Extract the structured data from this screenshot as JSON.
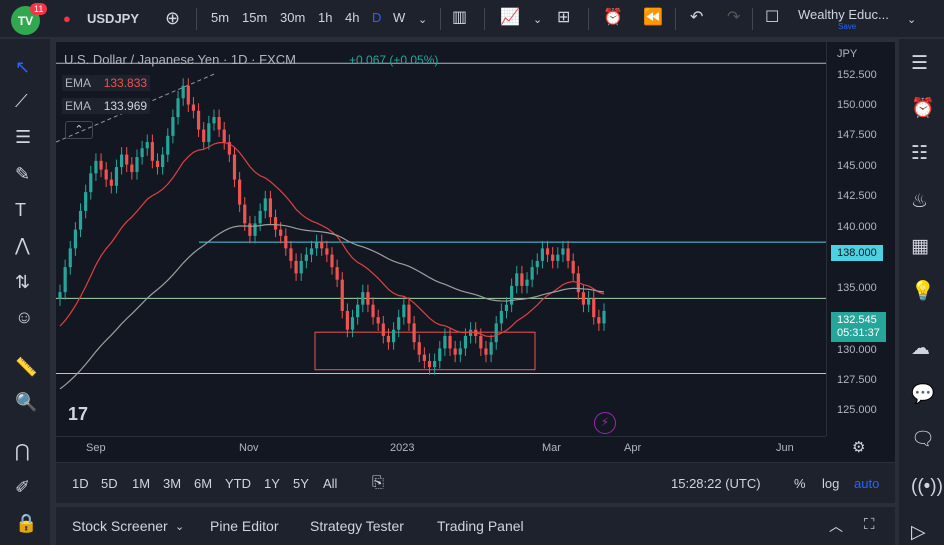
{
  "toolbar": {
    "notif_count": "11",
    "symbol": "USDJPY",
    "timeframes": [
      "5m",
      "15m",
      "30m",
      "1h",
      "4h",
      "D",
      "W"
    ],
    "active_timeframe": "D",
    "account_name": "Wealthy Educ...",
    "account_sub": "Save"
  },
  "legend": {
    "title": "U.S. Dollar / Japanese Yen · 1D · FXCM",
    "change": "+0.067 (+0.05%)",
    "ema1_label": "EMA",
    "ema1_value": "133.833",
    "ema2_label": "EMA",
    "ema2_value": "133.969",
    "currency": "JPY"
  },
  "price_axis": [
    "152.500",
    "150.000",
    "147.500",
    "145.000",
    "142.500",
    "140.000",
    "135.000",
    "130.000",
    "127.500",
    "125.000"
  ],
  "date_axis": [
    "Sep",
    "Nov",
    "2023",
    "Mar",
    "Apr",
    "Jun"
  ],
  "tags": {
    "level": "138.000",
    "last_price": "132.545",
    "countdown": "05:31:37"
  },
  "range_bar": {
    "ranges": [
      "1D",
      "5D",
      "1M",
      "3M",
      "6M",
      "YTD",
      "1Y",
      "5Y",
      "All"
    ],
    "clock": "15:28:22 (UTC)",
    "pct": "%",
    "log": "log",
    "auto": "auto"
  },
  "panels": [
    "Stock Screener",
    "Pine Editor",
    "Strategy Tester",
    "Trading Panel"
  ],
  "colors": {
    "up": "#26a69a",
    "down": "#ef5350",
    "ema_fast": "#e04040",
    "ema_slow": "#9e9e9e",
    "level_line": "#4dd0e1",
    "support_line": "#a5d6a7",
    "last_price_tag": "#26a69a"
  },
  "chart_data": {
    "type": "candlestick",
    "horizontal_levels": [
      152.5,
      138.0,
      133.5,
      127.5
    ],
    "support_box": {
      "from": 127.8,
      "to": 130.8
    },
    "last": 132.545,
    "close_series": [
      134.0,
      136.0,
      137.5,
      139.0,
      140.5,
      142.0,
      143.5,
      144.5,
      143.8,
      143.0,
      142.5,
      144.0,
      145.0,
      144.2,
      143.6,
      144.8,
      145.5,
      146.0,
      144.5,
      144.0,
      145.0,
      146.5,
      148.0,
      149.5,
      150.5,
      149.0,
      148.5,
      147.0,
      146.0,
      147.5,
      148.0,
      147.0,
      146.0,
      145.0,
      143.0,
      141.0,
      139.5,
      138.5,
      139.5,
      140.5,
      141.5,
      140.0,
      139.0,
      138.5,
      137.5,
      136.5,
      135.5,
      136.5,
      137.0,
      137.5,
      138.0,
      137.5,
      137.0,
      136.0,
      135.0,
      132.5,
      131.0,
      132.0,
      133.0,
      134.0,
      133.0,
      132.0,
      131.5,
      130.5,
      130.0,
      131.0,
      132.0,
      133.0,
      131.5,
      130.0,
      129.0,
      128.5,
      128.0,
      128.5,
      129.5,
      130.5,
      129.5,
      129.0,
      129.5,
      130.5,
      131.0,
      130.5,
      129.5,
      129.0,
      130.0,
      131.5,
      132.5,
      133.0,
      134.5,
      135.5,
      134.5,
      135.0,
      136.0,
      136.5,
      137.5,
      137.0,
      136.5,
      137.0,
      137.5,
      136.5,
      135.5,
      134.0,
      133.0,
      133.5,
      132.0,
      131.5,
      132.5
    ]
  }
}
